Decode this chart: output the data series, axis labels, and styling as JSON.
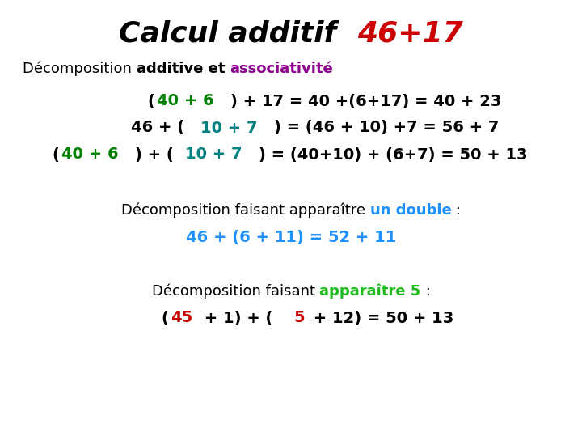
{
  "bg_color": "#ffffff",
  "title_black": "Calcul additif  ",
  "title_red": "46+17",
  "subtitle_normal": "Décomposition ",
  "subtitle_bold": "additive et ",
  "subtitle_purple": "associativité",
  "line1_segments": [
    {
      "text": "(",
      "color": "#000000"
    },
    {
      "text": "40 + 6",
      "color": "#008000"
    },
    {
      "text": ") + 17 = 40 +(6+17) = 40 + 23",
      "color": "#000000"
    }
  ],
  "line2_segments": [
    {
      "text": "46 + (",
      "color": "#000000"
    },
    {
      "text": "10 + 7",
      "color": "#008080"
    },
    {
      "text": ") = (46 + 10) +7 = 56 + 7",
      "color": "#000000"
    }
  ],
  "line3_segments": [
    {
      "text": "(",
      "color": "#000000"
    },
    {
      "text": "40 + 6",
      "color": "#008000"
    },
    {
      "text": ") + (",
      "color": "#000000"
    },
    {
      "text": "10 + 7",
      "color": "#008080"
    },
    {
      "text": ") = (40+10) + (6+7) = 50 + 13",
      "color": "#000000"
    }
  ],
  "section2_normal": "Décomposition faisant apparaître ",
  "section2_colored": "un double",
  "section2_colored_color": "#1e90ff",
  "section2_end": " :",
  "line4_segments": [
    {
      "text": "46 + (6 + 11) = 52 + 11",
      "color": "#1e90ff"
    }
  ],
  "section3_normal": "Décomposition faisant ",
  "section3_colored": "apparaître 5",
  "section3_colored_color": "#22bb22",
  "section3_end": " :",
  "line5_segments": [
    {
      "text": "(",
      "color": "#000000"
    },
    {
      "text": "45",
      "color": "#cc0000"
    },
    {
      "text": " + 1) + (",
      "color": "#000000"
    },
    {
      "text": "5",
      "color": "#cc0000"
    },
    {
      "text": " + 12) = 50 + 13",
      "color": "#000000"
    }
  ]
}
